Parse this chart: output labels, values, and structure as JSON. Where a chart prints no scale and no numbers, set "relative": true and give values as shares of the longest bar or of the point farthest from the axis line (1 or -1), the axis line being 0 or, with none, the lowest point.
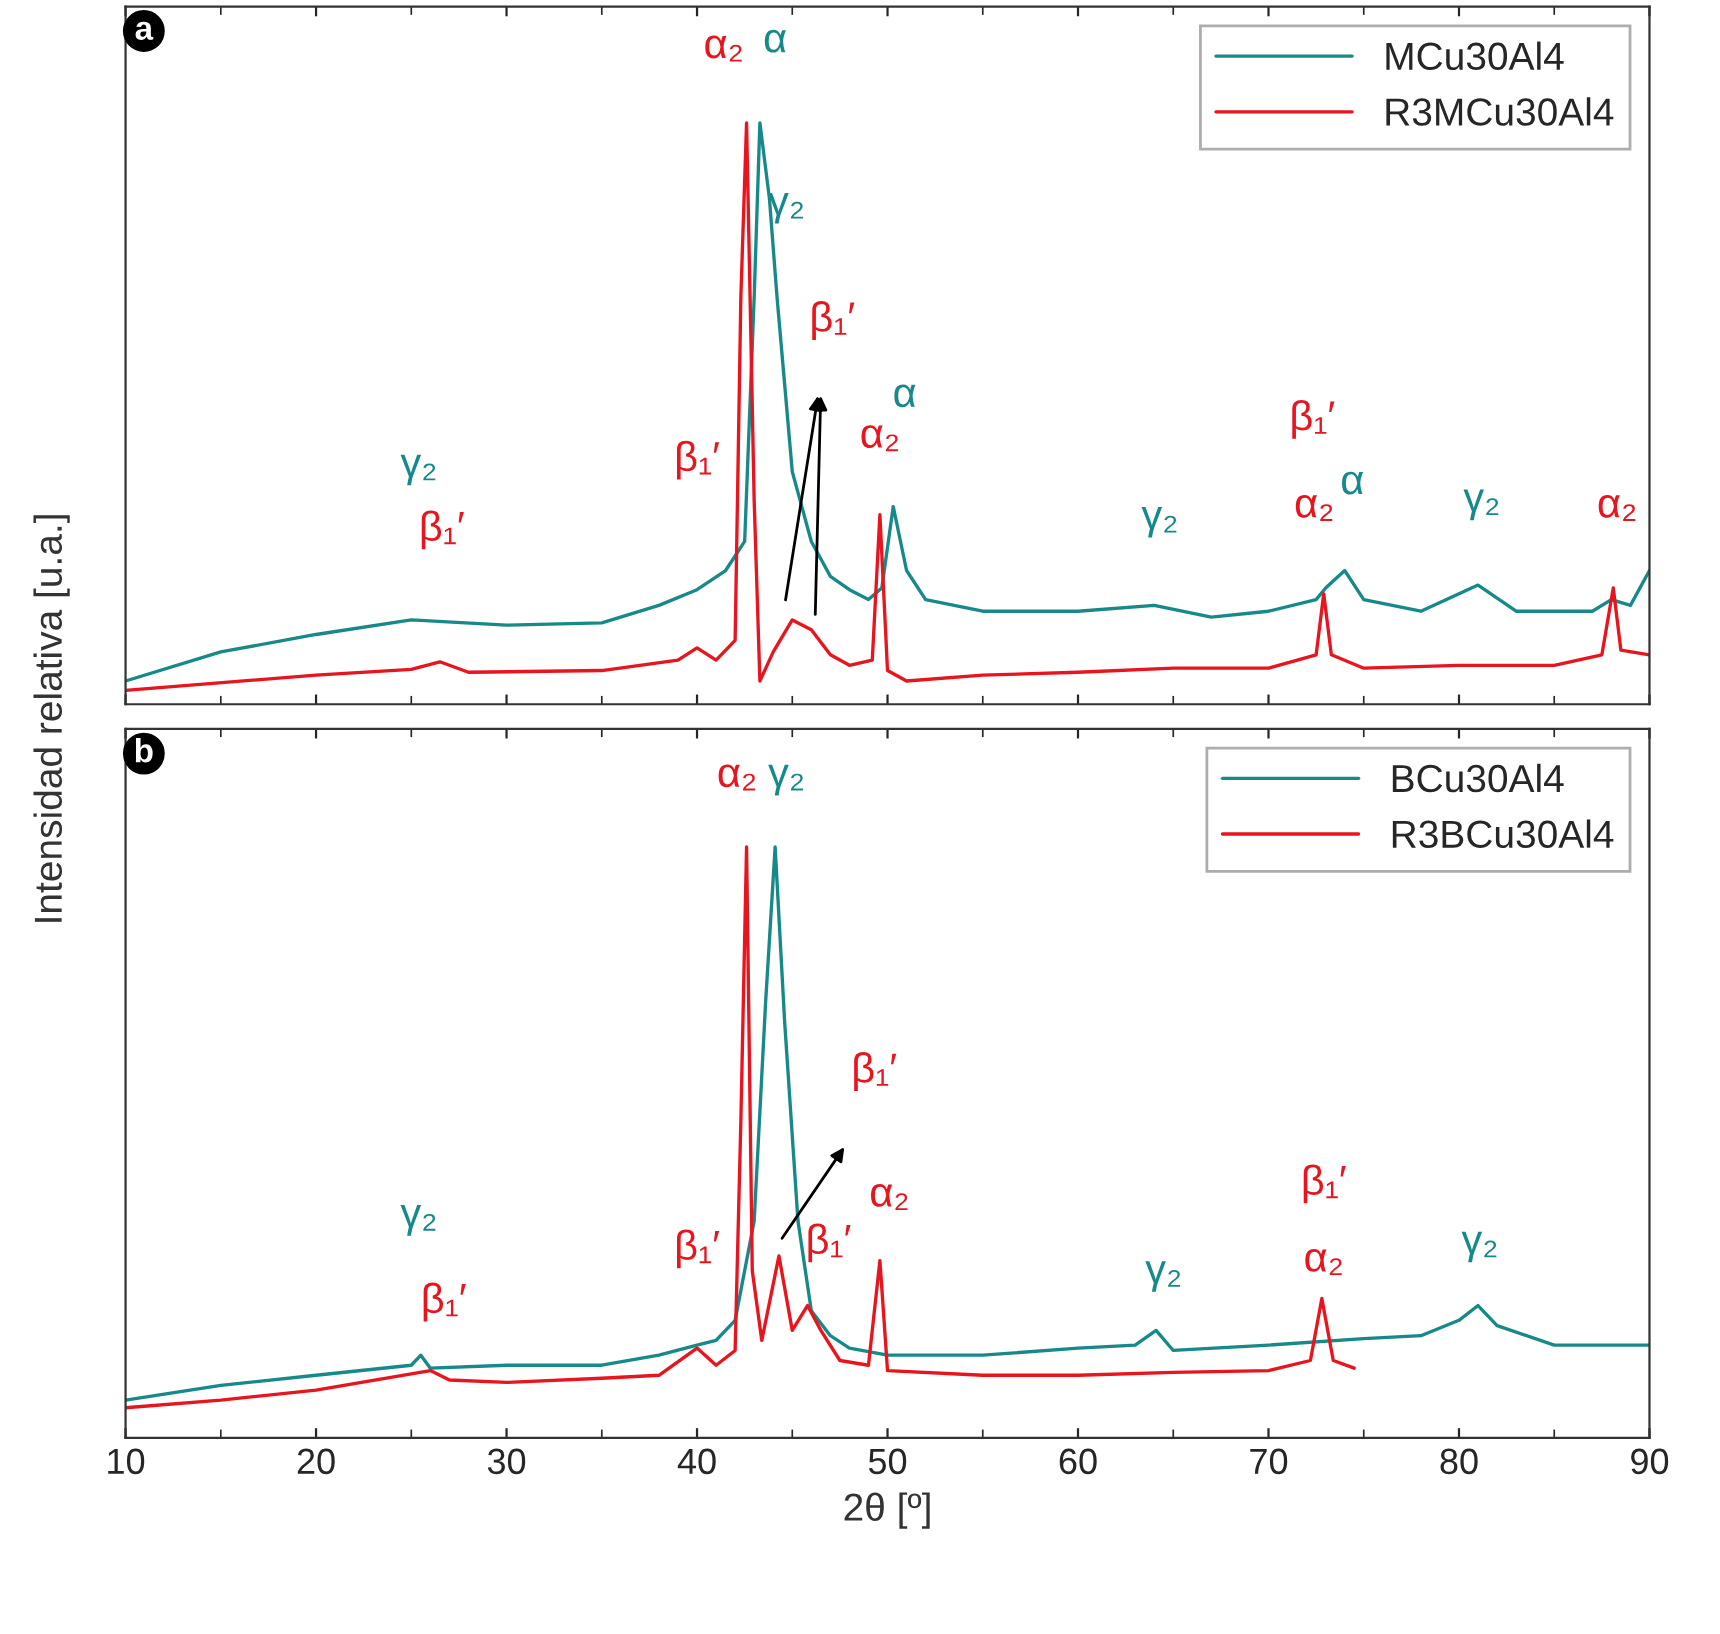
{
  "chart_data": [
    {
      "type": "line",
      "title": "a",
      "ylabel": "Intensidad relativa [u.a.]",
      "relative": true,
      "xlim": [
        10,
        90
      ],
      "xticks": [
        10,
        20,
        30,
        40,
        50,
        60,
        70,
        80,
        90
      ],
      "tick_labels": false,
      "legend": "top right",
      "grid": false,
      "line_style": "solid",
      "marker": "none",
      "series": [
        {
          "name": "MCu30Al4",
          "color": "#17898a",
          "x": [
            10,
            15,
            20,
            25,
            30,
            35,
            38,
            40,
            41.5,
            42.5,
            43,
            43.3,
            43.8,
            44.2,
            45,
            46,
            47,
            48,
            49,
            49.7,
            50.3,
            51,
            52,
            55,
            60,
            64,
            67,
            70,
            72.5,
            73,
            74,
            75,
            78,
            81,
            83,
            87,
            88,
            89,
            90
          ],
          "values": [
            0.04,
            0.09,
            0.12,
            0.145,
            0.136,
            0.14,
            0.17,
            0.197,
            0.23,
            0.28,
            0.7,
            1.0,
            0.87,
            0.7,
            0.4,
            0.28,
            0.22,
            0.197,
            0.18,
            0.2,
            0.34,
            0.23,
            0.18,
            0.16,
            0.16,
            0.17,
            0.15,
            0.16,
            0.18,
            0.2,
            0.23,
            0.18,
            0.16,
            0.205,
            0.16,
            0.16,
            0.18,
            0.17,
            0.23
          ]
        },
        {
          "name": "R3MCu30Al4",
          "color": "#e8141e",
          "x": [
            10,
            20,
            25,
            26.5,
            28,
            35,
            39,
            40,
            41,
            42,
            42.3,
            42.6,
            43,
            43.3,
            44,
            45,
            46,
            47,
            48,
            49.2,
            49.6,
            50,
            51,
            55,
            60,
            65,
            70,
            72.5,
            72.9,
            73.3,
            75,
            80,
            85,
            87.5,
            88.1,
            88.5,
            90
          ],
          "values": [
            0.024,
            0.05,
            0.06,
            0.073,
            0.055,
            0.058,
            0.076,
            0.097,
            0.076,
            0.11,
            0.7,
            1.0,
            0.35,
            0.04,
            0.09,
            0.145,
            0.128,
            0.085,
            0.067,
            0.076,
            0.326,
            0.058,
            0.04,
            0.05,
            0.055,
            0.062,
            0.062,
            0.085,
            0.19,
            0.085,
            0.062,
            0.067,
            0.067,
            0.085,
            0.2,
            0.093,
            0.085
          ]
        }
      ],
      "annotations": [
        "α₂",
        "α",
        "γ₂",
        "β₁′",
        "γ₂",
        "β₁′",
        "β₁′",
        "α₂",
        "α",
        "γ₂",
        "β₁′",
        "α₂",
        "α",
        "γ₂",
        "α₂"
      ]
    },
    {
      "type": "line",
      "title": "b",
      "xlabel": "2θ [º]",
      "relative": true,
      "xlim": [
        10,
        90
      ],
      "xticks": [
        10,
        20,
        30,
        40,
        50,
        60,
        70,
        80,
        90
      ],
      "tick_labels": "x",
      "legend": "top right",
      "grid": false,
      "line_style": "solid",
      "marker": "none",
      "series": [
        {
          "name": "BCu30Al4",
          "color": "#17898a",
          "x": [
            10,
            15,
            20,
            25,
            25.5,
            26,
            30,
            35,
            38,
            40,
            41,
            42,
            43,
            43.6,
            44.1,
            44.6,
            45.3,
            46,
            47,
            48,
            50,
            55,
            60,
            63,
            64.1,
            65,
            70,
            75,
            78,
            80,
            81,
            82,
            85,
            90
          ],
          "values": [
            0.064,
            0.089,
            0.106,
            0.123,
            0.14,
            0.118,
            0.123,
            0.123,
            0.14,
            0.157,
            0.165,
            0.199,
            0.367,
            0.737,
            1.0,
            0.704,
            0.367,
            0.215,
            0.173,
            0.152,
            0.14,
            0.14,
            0.152,
            0.157,
            0.182,
            0.148,
            0.157,
            0.168,
            0.173,
            0.199,
            0.224,
            0.19,
            0.157,
            0.157
          ]
        },
        {
          "name": "R3BCu30Al4",
          "color": "#e8141e",
          "x": [
            10,
            15,
            20,
            26,
            27,
            30,
            35,
            38,
            40,
            41,
            42,
            42.3,
            42.6,
            42.9,
            43.4,
            44.3,
            45,
            45.8,
            46.5,
            47.5,
            49,
            49.6,
            50,
            55,
            60,
            65,
            70,
            72.2,
            72.8,
            73.4,
            74.5
          ],
          "values": [
            0.051,
            0.064,
            0.081,
            0.114,
            0.098,
            0.094,
            0.101,
            0.106,
            0.152,
            0.123,
            0.148,
            0.535,
            1.0,
            0.283,
            0.165,
            0.308,
            0.182,
            0.224,
            0.182,
            0.131,
            0.123,
            0.3,
            0.114,
            0.106,
            0.106,
            0.111,
            0.114,
            0.131,
            0.236,
            0.131,
            0.118
          ]
        }
      ],
      "annotations": [
        "α₂",
        "γ₂",
        "β₁′",
        "β₁′",
        "α₂",
        "β₁′",
        "γ₂",
        "β₁′",
        "γ₂",
        "β₁′",
        "α₂",
        "γ₂"
      ]
    }
  ]
}
